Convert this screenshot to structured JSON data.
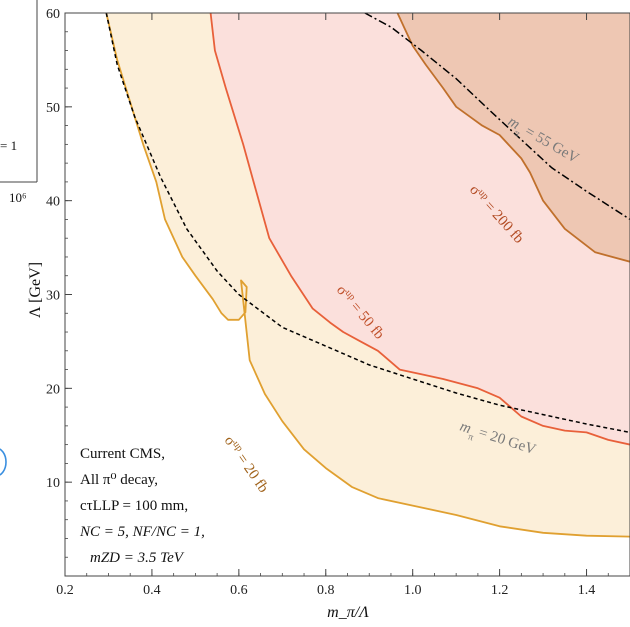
{
  "chart_data": {
    "type": "area",
    "title": "",
    "xlabel": "m_π/Λ",
    "ylabel": "Λ [GeV]",
    "xlim": [
      0.2,
      1.5
    ],
    "ylim": [
      0,
      60
    ],
    "xticks": [
      0.2,
      0.4,
      0.6,
      0.8,
      1.0,
      1.2,
      1.4
    ],
    "xtick_labels": [
      "0.2",
      "0.4",
      "0.6",
      "0.8",
      "1.0",
      "1.2",
      "1.4"
    ],
    "yticks": [
      10,
      20,
      30,
      40,
      50,
      60
    ],
    "ytick_labels": [
      "10",
      "20",
      "30",
      "40",
      "50",
      "60"
    ],
    "grid": false,
    "regions": [
      {
        "label_prefix": "σ",
        "label_sup": "up",
        "label_value": " = 20 fb",
        "color": "#e0a030",
        "fill": "#fcefd9",
        "boundary": [
          [
            0.295,
            60
          ],
          [
            0.32,
            55
          ],
          [
            0.36,
            49
          ],
          [
            0.38,
            46
          ],
          [
            0.41,
            42
          ],
          [
            0.43,
            38
          ],
          [
            0.47,
            34
          ],
          [
            0.5,
            32
          ],
          [
            0.54,
            29.5
          ],
          [
            0.56,
            28
          ],
          [
            0.575,
            27.3
          ],
          [
            0.6,
            27.3
          ],
          [
            0.615,
            28.1
          ],
          [
            0.618,
            30.8
          ],
          [
            0.605,
            31.5
          ],
          [
            0.625,
            23
          ],
          [
            0.66,
            19.4
          ],
          [
            0.7,
            16.5
          ],
          [
            0.75,
            13.5
          ],
          [
            0.8,
            11.5
          ],
          [
            0.86,
            9.5
          ],
          [
            0.92,
            8.3
          ],
          [
            1.0,
            7.5
          ],
          [
            1.1,
            6.5
          ],
          [
            1.2,
            5.3
          ],
          [
            1.3,
            4.6
          ],
          [
            1.4,
            4.3
          ],
          [
            1.5,
            4.2
          ]
        ]
      },
      {
        "label_prefix": "σ",
        "label_sup": "up",
        "label_value": " = 50 fb",
        "color": "#e8603a",
        "fill": "#fbe0dc",
        "boundary": [
          [
            0.535,
            60
          ],
          [
            0.545,
            56
          ],
          [
            0.57,
            52
          ],
          [
            0.61,
            46
          ],
          [
            0.64,
            41
          ],
          [
            0.67,
            36
          ],
          [
            0.72,
            32
          ],
          [
            0.77,
            28.5
          ],
          [
            0.81,
            27
          ],
          [
            0.84,
            26
          ],
          [
            0.88,
            25
          ],
          [
            0.92,
            24
          ],
          [
            0.97,
            22
          ],
          [
            1.02,
            21.5
          ],
          [
            1.07,
            21
          ],
          [
            1.11,
            20.5
          ],
          [
            1.15,
            20
          ],
          [
            1.2,
            19
          ],
          [
            1.25,
            17
          ],
          [
            1.3,
            16
          ],
          [
            1.35,
            15.5
          ],
          [
            1.4,
            15.3
          ],
          [
            1.45,
            14.5
          ],
          [
            1.5,
            14
          ]
        ]
      },
      {
        "label_prefix": "σ",
        "label_sup": "up",
        "label_value": " = 200 fb",
        "color": "#c0702c",
        "fill": "#eec7b3",
        "boundary": [
          [
            0.965,
            60
          ],
          [
            0.98,
            58.5
          ],
          [
            1.0,
            56.5
          ],
          [
            1.03,
            54.5
          ],
          [
            1.07,
            52
          ],
          [
            1.1,
            50
          ],
          [
            1.13,
            49
          ],
          [
            1.16,
            48
          ],
          [
            1.2,
            47
          ],
          [
            1.23,
            45.5
          ],
          [
            1.25,
            44.5
          ],
          [
            1.27,
            43
          ],
          [
            1.3,
            40
          ],
          [
            1.35,
            37
          ],
          [
            1.42,
            34.5
          ],
          [
            1.5,
            33.5
          ]
        ]
      }
    ],
    "contours": [
      {
        "label_prefix": "m",
        "label_sub": "π",
        "label_value": " = 20 GeV",
        "style": "dashed",
        "color": "#000000",
        "points": [
          [
            0.295,
            60
          ],
          [
            0.32,
            54.5
          ],
          [
            0.36,
            49
          ],
          [
            0.42,
            42.5
          ],
          [
            0.48,
            37
          ],
          [
            0.55,
            32.5
          ],
          [
            0.6,
            30
          ],
          [
            0.7,
            26.5
          ],
          [
            0.8,
            24.5
          ],
          [
            0.9,
            22.5
          ],
          [
            1.0,
            21
          ],
          [
            1.1,
            19.5
          ],
          [
            1.2,
            18.2
          ],
          [
            1.3,
            17.2
          ],
          [
            1.4,
            16.2
          ],
          [
            1.5,
            15.3
          ]
        ]
      },
      {
        "label_prefix": "m",
        "label_sub": "π",
        "label_value": " = 55 GeV",
        "style": "dashdot",
        "color": "#000000",
        "points": [
          [
            0.89,
            60
          ],
          [
            0.95,
            58.5
          ],
          [
            1.02,
            56
          ],
          [
            1.1,
            53
          ],
          [
            1.18,
            49.5
          ],
          [
            1.25,
            46.5
          ],
          [
            1.32,
            43.5
          ],
          [
            1.4,
            41
          ],
          [
            1.5,
            38
          ]
        ]
      }
    ],
    "info_box": [
      "Current CMS,",
      "All π⁰ decay,",
      "cτLLP = 100 mm,",
      "NC = 5, NF/NC = 1,",
      "mZD = 3.5 TeV"
    ],
    "partial_labels": [
      "= 1",
      "10⁶"
    ]
  }
}
